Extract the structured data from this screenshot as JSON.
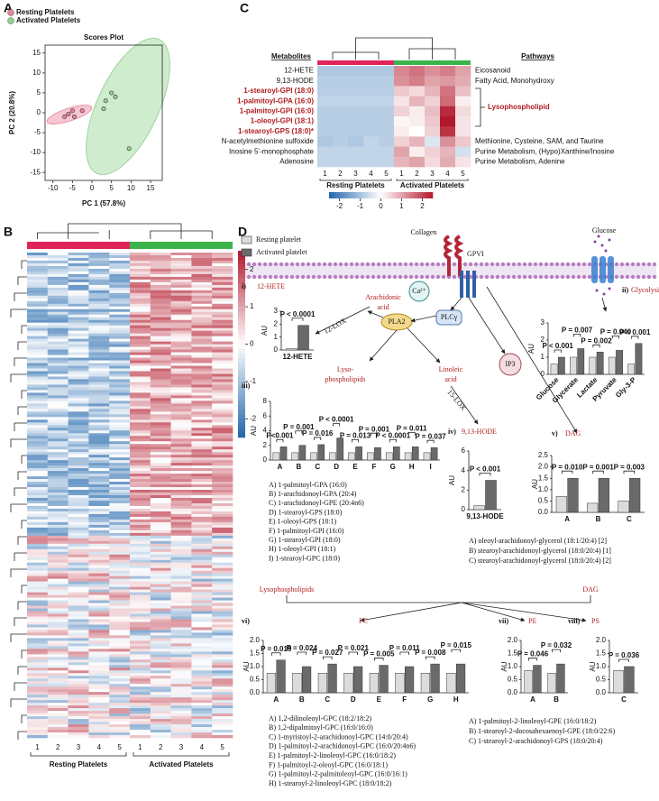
{
  "panel_labels": [
    "A",
    "B",
    "C",
    "D"
  ],
  "scores_plot": {
    "type": "scatter",
    "title": "Scores Plot",
    "xlabel": "PC 1 (57.8%)",
    "ylabel": "PC 2 (20.8%)",
    "xlim": [
      -12,
      18
    ],
    "ylim": [
      -17,
      17
    ],
    "xticks": [
      -10,
      -5,
      0,
      5,
      10,
      15
    ],
    "yticks": [
      -15,
      -10,
      -5,
      0,
      5,
      10,
      15
    ],
    "series": [
      {
        "name": "Resting Platelets",
        "color": "#e8829a",
        "x": [
          -7,
          -6,
          -5,
          -4.5,
          -2.5
        ],
        "y": [
          -1,
          -0.3,
          0.5,
          -1,
          0.5
        ]
      },
      {
        "name": "Activated Platelets",
        "color": "#8fd18f",
        "x": [
          3,
          3.5,
          5,
          6,
          9.5
        ],
        "y": [
          1,
          3,
          5,
          4,
          -9
        ]
      }
    ]
  },
  "heatmap_b": {
    "columns": [
      "1",
      "2",
      "3",
      "4",
      "5",
      "1",
      "2",
      "3",
      "4",
      "5"
    ],
    "groups": [
      "Resting Platelets",
      "Activated Platelets"
    ],
    "colorbar_lim": [
      -2.5,
      2.5
    ],
    "colorbar_ticks": [
      2,
      1,
      0,
      -1,
      -2
    ]
  },
  "heatmap_c": {
    "metabolites_header": "Metabolites",
    "pathways_header": "Pathways",
    "columns": [
      "1",
      "2",
      "3",
      "4",
      "5",
      "1",
      "2",
      "3",
      "4",
      "5"
    ],
    "groups": [
      "Resting Platelets",
      "Activated Platelets"
    ],
    "colorbar_lim": [
      -2.5,
      2.5
    ],
    "colorbar_ticks": [
      -2,
      -1,
      0,
      1,
      2
    ],
    "group_pathway": "Lysophospholipid",
    "rows": [
      {
        "name": "12-HETE",
        "highlight": false,
        "values": [
          -0.9,
          -0.9,
          -0.9,
          -0.9,
          -0.9,
          1.3,
          1.5,
          1.2,
          1.4,
          1.0
        ]
      },
      {
        "name": "9,13-HODE",
        "highlight": false,
        "values": [
          -0.8,
          -0.8,
          -0.8,
          -0.8,
          -0.8,
          1.2,
          1.4,
          1.0,
          1.1,
          0.9
        ]
      },
      {
        "name": "1-stearoyl-GPI (18:0)",
        "highlight": true,
        "values": [
          -0.8,
          -0.8,
          -0.8,
          -0.8,
          -0.8,
          0.6,
          0.4,
          0.8,
          1.5,
          0.7
        ]
      },
      {
        "name": "1-palmitoyl-GPA (16:0)",
        "highlight": true,
        "values": [
          -0.7,
          -0.7,
          -0.7,
          -0.7,
          -0.7,
          0.3,
          0.8,
          0.5,
          1.6,
          0.2
        ]
      },
      {
        "name": "1-palmitoyl-GPI (16:0)",
        "highlight": true,
        "values": [
          -0.8,
          -0.8,
          -0.8,
          -0.8,
          -0.8,
          0.5,
          0.2,
          0.7,
          2.3,
          0.4
        ]
      },
      {
        "name": "1-oleoyl-GPI (18:1)",
        "highlight": true,
        "values": [
          -0.8,
          -0.8,
          -0.8,
          -0.8,
          -0.8,
          0.1,
          0.2,
          0.6,
          2.5,
          0.3
        ]
      },
      {
        "name": "1-stearoyl-GPS (18:0)*",
        "highlight": true,
        "values": [
          -0.8,
          -0.8,
          -0.8,
          -0.8,
          -0.8,
          0.2,
          0.0,
          0.5,
          2.2,
          0.3
        ]
      },
      {
        "name": "N-acetylmethionine sulfoxide",
        "highlight": false,
        "values": [
          -0.9,
          -0.8,
          -0.9,
          -0.7,
          -0.8,
          0.5,
          0.8,
          -0.4,
          1.2,
          0.6
        ]
      },
      {
        "name": "Inosine 5'-monophosphate",
        "highlight": false,
        "values": [
          -0.7,
          -0.7,
          -0.7,
          -0.7,
          -0.7,
          1.0,
          0.2,
          0.5,
          0.8,
          -0.5
        ]
      },
      {
        "name": "Adenosine",
        "highlight": false,
        "values": [
          -0.7,
          -0.7,
          -0.7,
          -0.7,
          -0.7,
          0.8,
          1.0,
          0.4,
          0.9,
          0.3
        ]
      }
    ],
    "pathways": [
      "Eicosanoid",
      "Fatty Acid, Monohydroxy",
      null,
      null,
      null,
      null,
      null,
      "Methionine, Cysteine, SAM, and Taurine",
      "Purine Metabolism, (Hypo)Xanthine/Inosine",
      "Purine Metabolism, Adenine"
    ]
  },
  "legend_d": {
    "resting": "Resting platelet",
    "activated": "Activated platelet"
  },
  "scheme": {
    "collagen": "Collagen",
    "gpvi": "GPVI",
    "glucose": "Glucose",
    "arachidonic": [
      "Arachidonic",
      "acid"
    ],
    "lox12": "12-LOX",
    "ca": "Ca²⁺",
    "pla2": "PLA2",
    "plc": "PLCγ",
    "ip3": "IP3",
    "lyso": [
      "Lyso-",
      "phospholipids"
    ],
    "linoleic": [
      "Linoleic",
      "acid"
    ],
    "lox15": "15-LOX",
    "flow_lyso": "Lysophospholipids",
    "flow_dag": "DAG"
  },
  "panels": {
    "i": {
      "label": "i)",
      "title": "12-HETE",
      "ylabel": "AU",
      "categories": [
        "12-HETE"
      ],
      "resting": [
        0.1
      ],
      "activated": [
        1.9
      ],
      "p": [
        "P < 0.0001"
      ],
      "ylim": [
        0,
        3
      ],
      "yticks": [
        0,
        1,
        2,
        3
      ]
    },
    "ii": {
      "label": "ii)",
      "title": "Glycolysis",
      "ylabel": "AU",
      "categories": [
        "Glucose",
        "Glycerate",
        "Lactate",
        "Pyruvate",
        "Gly-3-P"
      ],
      "resting": [
        0.6,
        1.0,
        1.0,
        1.0,
        0.6
      ],
      "activated": [
        1.0,
        1.5,
        1.3,
        1.4,
        1.8
      ],
      "p": [
        "P < 0.001",
        "P = 0.007",
        "P = 0.002",
        "P = 0.040",
        "P = 0.001"
      ],
      "ylim": [
        0,
        3
      ],
      "yticks": [
        0,
        1,
        2,
        3
      ]
    },
    "iii": {
      "label": "iii)",
      "ylabel": "AU",
      "categories": [
        "A",
        "B",
        "C",
        "D",
        "E",
        "F",
        "G",
        "H",
        "I"
      ],
      "resting": [
        1,
        1,
        1,
        1,
        1,
        1,
        1,
        1,
        1
      ],
      "activated": [
        1.8,
        2.0,
        2.1,
        3.0,
        1.8,
        1.7,
        1.8,
        1.8,
        1.7
      ],
      "p": [
        "P<0.001",
        "P = 0.001",
        "P = 0.016",
        "P < 0.0001",
        "P = 0.013",
        "P = 0.001",
        "P < 0.0001",
        "P = 0.011",
        "P = 0.037"
      ],
      "ylim": [
        0,
        8
      ],
      "yticks": [
        0,
        2,
        4,
        6,
        8
      ],
      "key": [
        "A) 1-palmitoyl-GPA (16:0)",
        "B) 1-arachidonoyl-GPA (20:4)",
        "C) 1-arachidonoyl-GPE (20:4n6)",
        "D) 1-stearoyl-GPS (18:0)",
        "E) 1-oleoyl-GPS (18:1)",
        "F) 1-palmitoyl-GPI (16:0)",
        "G) 1-stearoyl-GPI (18:0)",
        "H) 1-oleoyl-GPI (18:1)",
        "I) 1-stearoyl-GPC (18:0)"
      ]
    },
    "iv": {
      "label": "iv)",
      "title": "9,13-HODE",
      "ylabel": "AU",
      "categories": [
        "9,13-HODE"
      ],
      "resting": [
        0.4
      ],
      "activated": [
        3.0
      ],
      "p": [
        "P < 0.001"
      ],
      "ylim": [
        0,
        6
      ],
      "yticks": [
        0,
        2,
        4,
        6
      ]
    },
    "v": {
      "label": "v)",
      "title": "DAG",
      "ylabel": "AU",
      "categories": [
        "A",
        "B",
        "C"
      ],
      "resting": [
        0.7,
        0.4,
        0.5
      ],
      "activated": [
        1.5,
        1.5,
        1.5
      ],
      "p": [
        "P = 0.010",
        "P = 0.001",
        "P = 0.003"
      ],
      "ylim": [
        0,
        2.5
      ],
      "yticks": [
        {
          "value": 0,
          "label": "0.0"
        },
        0.5,
        {
          "value": 1,
          "label": "1.0"
        },
        1.5,
        {
          "value": 2,
          "label": "2.0"
        },
        2.5
      ],
      "key": [
        "A) oleoyl-arachidonoyl-glycerol (18:1/20:4) [2]",
        "B) stearoyl-arachidonoyl-glycerol (18:0/20:4) [1]",
        "C) stearoyl-arachidonoyl-glycerol (18:0/20:4) [2]"
      ]
    },
    "vi": {
      "label": "vi)",
      "title": "PC",
      "ylabel": "AU",
      "categories": [
        "A",
        "B",
        "C",
        "D",
        "E",
        "F",
        "G",
        "H"
      ],
      "resting": [
        0.75,
        0.75,
        0.75,
        0.75,
        0.75,
        0.75,
        0.75,
        0.75
      ],
      "activated": [
        1.25,
        1.0,
        1.1,
        1.0,
        1.05,
        1.0,
        1.1,
        1.1
      ],
      "p": [
        "P = 0.019",
        "P = 0.024",
        "P = 0.027",
        "P = 0.021",
        "P = 0.005",
        "P = 0.011",
        "P = 0.008",
        "P = 0.015"
      ],
      "ylim": [
        0,
        2
      ],
      "yticks": [
        {
          "value": 0,
          "label": "0.0"
        },
        0.5,
        {
          "value": 1,
          "label": "1.0"
        },
        1.5,
        {
          "value": 2,
          "label": "2.0"
        }
      ],
      "key": [
        "A) 1,2-dilinoleoyl-GPC (18:2/18:2)",
        "B) 1,2-dipalmitoyl-GPC (16:0/16:0)",
        "C) 1-myristoyl-2-arachidonoyl-GPC (14:0/20:4)",
        "D) 1-palmitoyl-2-arachidonoyl-GPC (16:0/20:4n6)",
        "E) 1-palmitoyl-2-linoleoyl-GPC (16:0/18:2)",
        "F) 1-palmitoyl-2-oleoyl-GPC (16:0/18:1)",
        "G) 1-palmitoyl-2-palmitoleoyl-GPC (16:0/16:1)",
        "H) 1-stearoyl-2-linoleoyl-GPC (18:0/18:2)"
      ]
    },
    "vii": {
      "label": "vii)",
      "title": "PE",
      "ylabel": "AU",
      "categories": [
        "A",
        "B"
      ],
      "resting": [
        0.85,
        0.75
      ],
      "activated": [
        1.05,
        1.1
      ],
      "p": [
        "P = 0.046",
        "P = 0.032"
      ],
      "ylim": [
        0,
        2
      ],
      "yticks": [
        {
          "value": 0,
          "label": "0.0"
        },
        0.5,
        {
          "value": 1,
          "label": "1.0"
        },
        1.5,
        {
          "value": 2,
          "label": "2.0"
        }
      ],
      "key": [
        "A) 1-palmitoyl-2-linoleoyl-GPE (16:0/18:2)",
        "B) 1-stearoyl-2-docosahexaenoyl-GPE (18:0/22:6)",
        "C) 1-stearoyl-2-arachidonoyl-GPS (18:0/20:4)"
      ]
    },
    "viii": {
      "label": "viii)",
      "title": "PS",
      "ylabel": "AU",
      "categories": [
        "C"
      ],
      "resting": [
        0.85
      ],
      "activated": [
        1.0
      ],
      "p": [
        "P = 0.036"
      ],
      "ylim": [
        0,
        2
      ],
      "yticks": [
        {
          "value": 0,
          "label": "0.0"
        },
        0.5,
        {
          "value": 1,
          "label": "1.0"
        },
        1.5,
        {
          "value": 2,
          "label": "2.0"
        }
      ]
    }
  }
}
